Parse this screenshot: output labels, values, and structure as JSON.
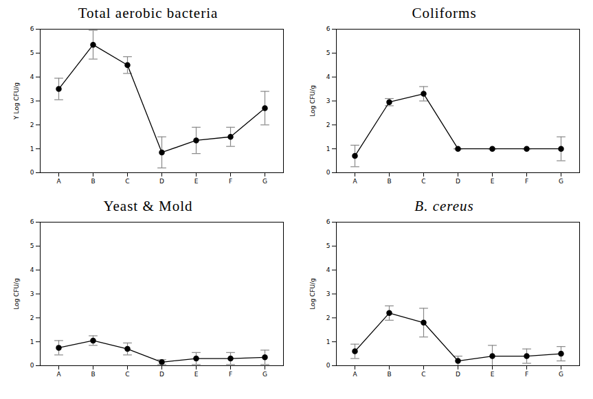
{
  "chart_data": [
    {
      "type": "line",
      "title": "Total aerobic bacteria",
      "ylabel": "Y Log CFU/g",
      "categories": [
        "A",
        "B",
        "C",
        "D",
        "E",
        "F",
        "G"
      ],
      "values": [
        3.5,
        5.35,
        4.5,
        0.85,
        1.35,
        1.5,
        2.7
      ],
      "errors": [
        0.45,
        0.6,
        0.35,
        0.65,
        0.55,
        0.4,
        0.7
      ],
      "ylim": [
        0,
        6
      ],
      "yticks": [
        0,
        1,
        2,
        3,
        4,
        5,
        6
      ],
      "color": "#000000",
      "marker": "circle"
    },
    {
      "type": "line",
      "title": "Coliforms",
      "ylabel": "Log CFU/g",
      "categories": [
        "A",
        "B",
        "C",
        "D",
        "E",
        "F",
        "G"
      ],
      "values": [
        0.7,
        2.95,
        3.3,
        1.0,
        1.0,
        1.0,
        1.0
      ],
      "errors": [
        0.45,
        0.15,
        0.3,
        0,
        0,
        0,
        0.5
      ],
      "ylim": [
        0,
        6
      ],
      "yticks": [
        0,
        1,
        2,
        3,
        4,
        5,
        6
      ],
      "color": "#000000",
      "marker": "circle"
    },
    {
      "type": "line",
      "title": "Yeast & Mold",
      "ylabel": "Log CFU/g",
      "categories": [
        "A",
        "B",
        "C",
        "D",
        "E",
        "F",
        "G"
      ],
      "values": [
        0.75,
        1.05,
        0.7,
        0.15,
        0.3,
        0.3,
        0.35
      ],
      "errors": [
        0.3,
        0.2,
        0.25,
        0.1,
        0.25,
        0.25,
        0.3
      ],
      "ylim": [
        0,
        6
      ],
      "yticks": [
        0,
        1,
        2,
        3,
        4,
        5,
        6
      ],
      "color": "#000000",
      "marker": "circle"
    },
    {
      "type": "line",
      "title": "B. cereus",
      "ylabel": "Log CFU/g",
      "categories": [
        "A",
        "B",
        "C",
        "D",
        "E",
        "F",
        "G"
      ],
      "values": [
        0.6,
        2.2,
        1.8,
        0.2,
        0.4,
        0.4,
        0.5
      ],
      "errors": [
        0.3,
        0.3,
        0.6,
        0.2,
        0.45,
        0.3,
        0.3
      ],
      "ylim": [
        0,
        6
      ],
      "yticks": [
        0,
        1,
        2,
        3,
        4,
        5,
        6
      ],
      "color": "#000000",
      "marker": "circle"
    }
  ]
}
